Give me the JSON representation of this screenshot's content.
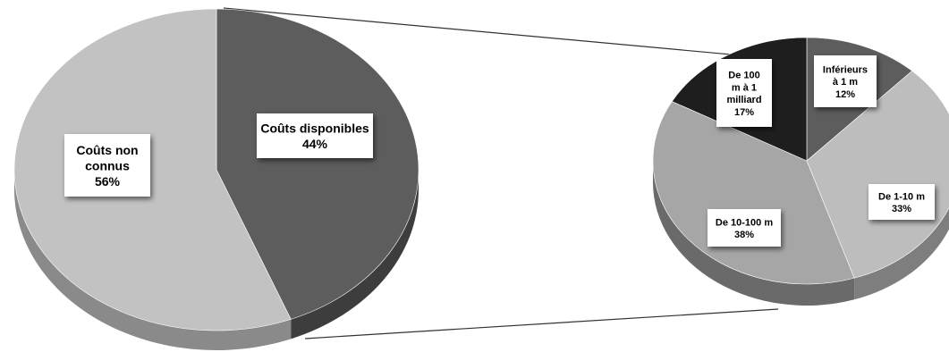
{
  "chart_data": [
    {
      "type": "pie",
      "title": "",
      "slices": [
        {
          "label_lines": [
            "Coûts disponibles"
          ],
          "pct_label": "44%",
          "value": 44,
          "color": "#5d5d5d",
          "side": "#3d3d3d"
        },
        {
          "label_lines": [
            "Coûts non",
            "connus"
          ],
          "pct_label": "56%",
          "value": 56,
          "color": "#c2c2c2",
          "side": "#8a8a8a"
        }
      ]
    },
    {
      "type": "pie",
      "title": "",
      "slices": [
        {
          "label_lines": [
            "Inférieurs",
            "à 1 m"
          ],
          "pct_label": "12%",
          "value": 12,
          "color": "#5d5d5d",
          "side": "#3e3e3e"
        },
        {
          "label_lines": [
            "De 1-10 m"
          ],
          "pct_label": "33%",
          "value": 33,
          "color": "#bdbdbd",
          "side": "#7e7e7e"
        },
        {
          "label_lines": [
            "De 10-100 m"
          ],
          "pct_label": "38%",
          "value": 38,
          "color": "#a6a6a6",
          "side": "#6a6a6a"
        },
        {
          "label_lines": [
            "De 100",
            "m à 1",
            "milliard"
          ],
          "pct_label": "17%",
          "value": 17,
          "color": "#1e1e1e",
          "side": "#101010"
        }
      ]
    }
  ]
}
